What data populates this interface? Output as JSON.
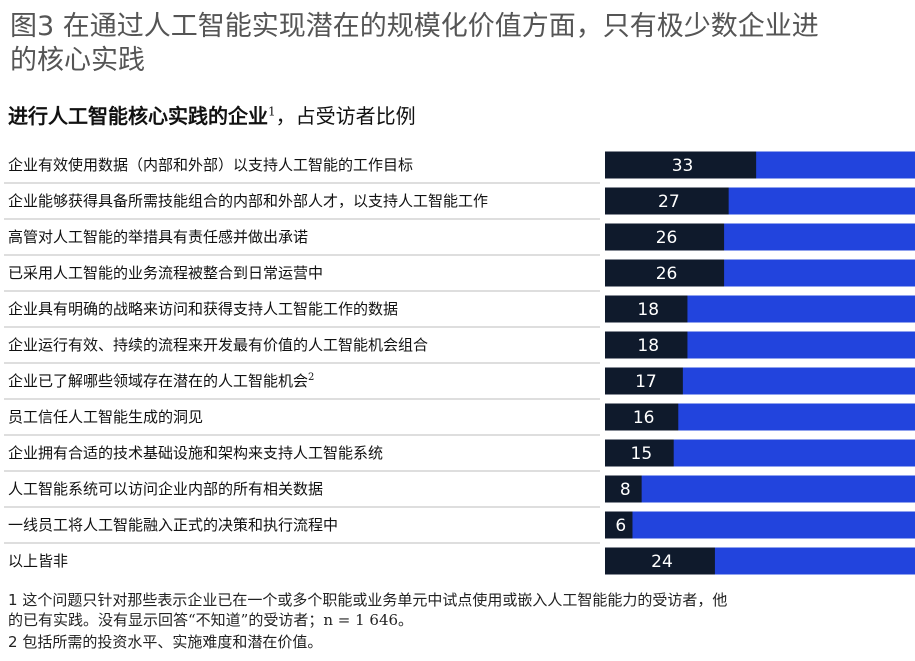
{
  "header": {
    "title_line1": "图3 在通过人工智能实现潜在的规模化价值方面，只有极少数企业进",
    "title_line2": "的核心实践",
    "subtitle_bold": "进行人工智能核心实践的企业",
    "subtitle_sup": "1",
    "subtitle_rest": "，占受访者比例"
  },
  "chart_data": {
    "type": "bar",
    "orientation": "horizontal",
    "stacked_remainder": true,
    "categories": [
      "企业有效使用数据（内部和外部）以支持人工智能的工作目标",
      "企业能够获得具备所需技能组合的内部和外部人才，以支持人工智能工作",
      "高管对人工智能的举措具有责任感并做出承诺",
      "已采用人工智能的业务流程被整合到日常运营中",
      "企业具有明确的战略来访问和获得支持人工智能工作的数据",
      "企业运行有效、持续的流程来开发最有价值的人工智能机会组合",
      "企业已了解哪些领域存在潜在的人工智能机会",
      "员工信任人工智能生成的洞见",
      "企业拥有合适的技术基础设施和架构来支持人工智能系统",
      "人工智能系统可以访问企业内部的所有相关数据",
      "一线员工将人工智能融入正式的决策和执行流程中",
      "以上皆非"
    ],
    "category_superscripts": [
      "",
      "",
      "",
      "",
      "",
      "",
      "2",
      "",
      "",
      "",
      "",
      ""
    ],
    "values": [
      33,
      27,
      26,
      26,
      18,
      18,
      17,
      16,
      15,
      8,
      6,
      24
    ],
    "xlim": [
      0,
      100
    ],
    "colors": {
      "value": "#0f1a2c",
      "remainder": "#2244dd",
      "separator": "#bdbdbd"
    }
  },
  "footnotes": {
    "n1_num": "1",
    "n1_line1": "这个问题只针对那些表示企业已在一个或多个职能或业务单元中试点使用或嵌入人工智能能力的受访者，他",
    "n1_line2": "的已有实践。没有显示回答“不知道”的受访者；n = 1 646。",
    "n2_num": "2",
    "n2_text": "包括所需的投资水平、实施难度和潜在价值。"
  }
}
